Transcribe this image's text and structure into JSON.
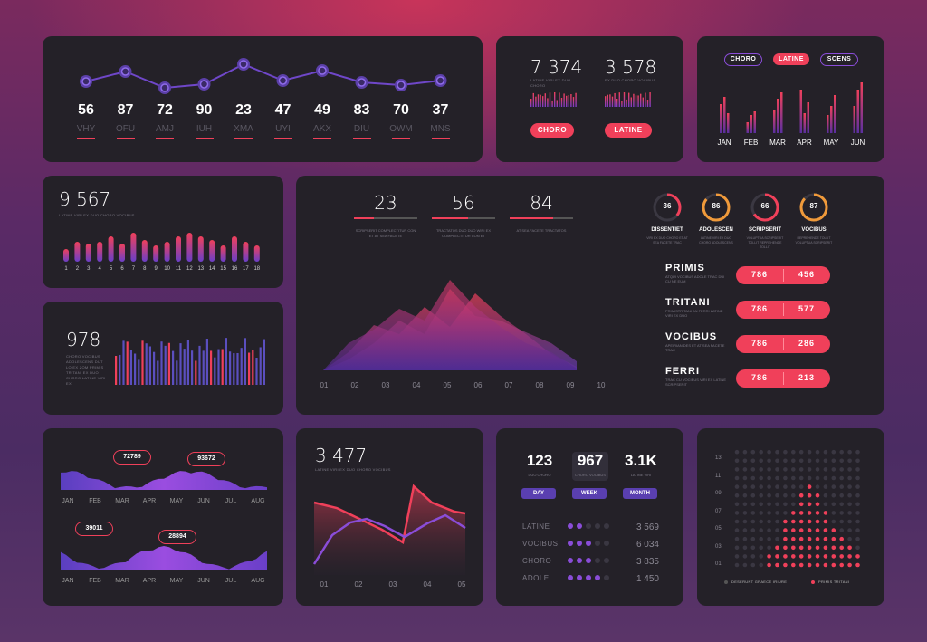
{
  "colors": {
    "accent": "#f0405a",
    "purple": "#8a4dd8",
    "panel": "#242128",
    "muted": "#7d7a86"
  },
  "p1": {
    "items": [
      {
        "value": "56",
        "label": "VHY"
      },
      {
        "value": "87",
        "label": "OFU"
      },
      {
        "value": "72",
        "label": "AMJ"
      },
      {
        "value": "90",
        "label": "IUH"
      },
      {
        "value": "23",
        "label": "XMA"
      },
      {
        "value": "47",
        "label": "UYI"
      },
      {
        "value": "49",
        "label": "AKX"
      },
      {
        "value": "83",
        "label": "DIU"
      },
      {
        "value": "70",
        "label": "OWM"
      },
      {
        "value": "37",
        "label": "MNS"
      }
    ]
  },
  "p2": {
    "stat1": {
      "value": "7 374",
      "caption": "LATINE VIRI EX DUO CHORO"
    },
    "stat2": {
      "value": "3 578",
      "caption": "EX DUO CHORO VOCIBUS"
    },
    "btn1": "CHORO",
    "btn2": "LATINE"
  },
  "p3": {
    "tabs": [
      "CHORO",
      "LATINE",
      "SCENS"
    ],
    "months": [
      "JAN",
      "FEB",
      "MAR",
      "APR",
      "MAY",
      "JUN"
    ]
  },
  "p4": {
    "value": "9 567",
    "caption": "LATINE VIRI EX DUO CHORO VOCIBUS",
    "axis": [
      "1",
      "2",
      "3",
      "4",
      "5",
      "6",
      "7",
      "8",
      "9",
      "10",
      "11",
      "12",
      "13",
      "14",
      "15",
      "16",
      "17",
      "18"
    ]
  },
  "p5": {
    "value": "978",
    "caption": "CHORO VOCIBUS ADOLESCENS DUT LO EX ZOM PRIMIS TRITANI EX DUO CHORO LATINE VIRI EX"
  },
  "p6": {
    "stats": [
      {
        "value": "23",
        "caption": "SCRIPSERIT COMPLECTITUR CON ET AT SEA FACETE"
      },
      {
        "value": "56",
        "caption": "TRACTATOS DUO DUO WIRI EX COMPLECTITUR CON ET"
      },
      {
        "value": "84",
        "caption": "AT SEA FACETE TRACTATOS"
      }
    ],
    "axis": [
      "01",
      "02",
      "03",
      "04",
      "05",
      "06",
      "07",
      "08",
      "09",
      "10"
    ],
    "rings": [
      {
        "value": "36",
        "name": "DISSENTIET",
        "caption": "VIRI EX DUO CHORO ET AT SEA FACETE TRAC"
      },
      {
        "value": "86",
        "name": "ADOLESCEN",
        "caption": "LATINE VIRI EX DUO CHORO ADOLESCENS"
      },
      {
        "value": "66",
        "name": "SCRIPSERIT",
        "caption": "VOLUPTUA SCRIPSERIT TOLLIT REPREHENDE TOLLIT"
      },
      {
        "value": "87",
        "name": "VOCIBUS",
        "caption": "REPREHENDE TOLLIT VOLUPTUA SCRIPSERIT"
      }
    ],
    "rows": [
      {
        "name": "PRIMIS",
        "caption": "ATQUI VOCIBUS ADOLE TRAC DUI CU NE EUM",
        "v1": "786",
        "v2": "456"
      },
      {
        "name": "TRITANI",
        "caption": "PRIMISTRITANI AN FERRI LATINE VIRI EX DUO",
        "v1": "786",
        "v2": "577"
      },
      {
        "name": "VOCIBUS",
        "caption": "APEIRIAN DES ET AT SEA FACETE TRAC",
        "v1": "786",
        "v2": "286"
      },
      {
        "name": "FERRI",
        "caption": "TRAC CU VOCIBUS VIRI EX LATINE SCRIPSERIT",
        "v1": "786",
        "v2": "213"
      }
    ]
  },
  "p7": {
    "tags": [
      "72789",
      "93672",
      "39011",
      "28894"
    ],
    "months": [
      "JAN",
      "FEB",
      "MAR",
      "APR",
      "MAY",
      "JUN",
      "JUL",
      "AUG"
    ]
  },
  "p8": {
    "value": "3 477",
    "caption": "LATINE VIRI EX DUO CHORO VOCIBUS",
    "axis": [
      "01",
      "02",
      "03",
      "04",
      "05"
    ]
  },
  "p9": {
    "stats": [
      {
        "value": "123",
        "caption": "DUO CHORO",
        "button": "DAY"
      },
      {
        "value": "967",
        "caption": "CHORO VOCIBUS",
        "button": "WEEK"
      },
      {
        "value": "3.1K",
        "caption": "LATINE VIRI",
        "button": "MONTH"
      }
    ],
    "rows": [
      {
        "label": "LATINE",
        "value": "3 569",
        "dots": 2
      },
      {
        "label": "VOCIBUS",
        "value": "6 034",
        "dots": 3
      },
      {
        "label": "CHORO",
        "value": "3 835",
        "dots": 3
      },
      {
        "label": "ADOLE",
        "value": "1 450",
        "dots": 4
      }
    ]
  },
  "p10": {
    "yaxis": [
      "13",
      "11",
      "09",
      "07",
      "05",
      "03",
      "01"
    ],
    "legend1": "DESERUNT GRAECE IRIURE",
    "legend2": "PRIMIS TRITANI"
  }
}
